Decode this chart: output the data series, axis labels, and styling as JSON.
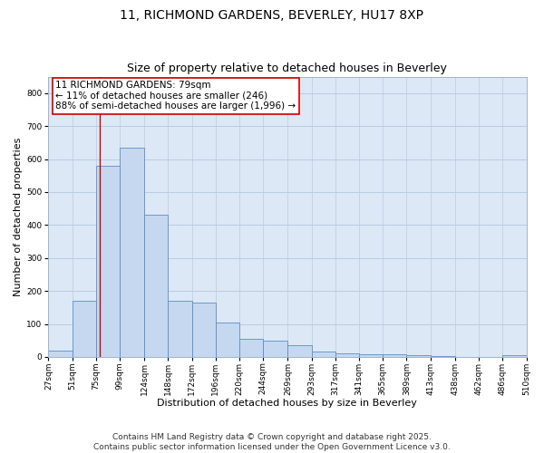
{
  "title_line1": "11, RICHMOND GARDENS, BEVERLEY, HU17 8XP",
  "title_line2": "Size of property relative to detached houses in Beverley",
  "xlabel": "Distribution of detached houses by size in Beverley",
  "ylabel": "Number of detached properties",
  "bar_color": "#c5d8f0",
  "bar_edge_color": "#5b8ec4",
  "background_color": "#ffffff",
  "plot_bg_color": "#dce8f5",
  "grid_color": "#b8cce4",
  "vline_color": "#cc0000",
  "vline_x": 79,
  "annotation_text": "11 RICHMOND GARDENS: 79sqm\n← 11% of detached houses are smaller (246)\n88% of semi-detached houses are larger (1,996) →",
  "annotation_box_color": "#ffffff",
  "annotation_box_edge_color": "#cc0000",
  "bin_edges": [
    27,
    51,
    75,
    99,
    124,
    148,
    172,
    196,
    220,
    244,
    269,
    293,
    317,
    341,
    365,
    389,
    413,
    438,
    462,
    486,
    510
  ],
  "bar_heights": [
    20,
    170,
    580,
    635,
    430,
    170,
    165,
    105,
    55,
    48,
    35,
    15,
    12,
    8,
    7,
    4,
    3,
    1,
    1,
    5
  ],
  "ylim": [
    0,
    850
  ],
  "yticks": [
    0,
    100,
    200,
    300,
    400,
    500,
    600,
    700,
    800
  ],
  "xtick_labels": [
    "27sqm",
    "51sqm",
    "75sqm",
    "99sqm",
    "124sqm",
    "148sqm",
    "172sqm",
    "196sqm",
    "220sqm",
    "244sqm",
    "269sqm",
    "293sqm",
    "317sqm",
    "341sqm",
    "365sqm",
    "389sqm",
    "413sqm",
    "438sqm",
    "462sqm",
    "486sqm",
    "510sqm"
  ],
  "footer_text": "Contains HM Land Registry data © Crown copyright and database right 2025.\nContains public sector information licensed under the Open Government Licence v3.0.",
  "title_fontsize": 10,
  "subtitle_fontsize": 9,
  "axis_label_fontsize": 8,
  "tick_fontsize": 6.5,
  "annotation_fontsize": 7.5,
  "footer_fontsize": 6.5
}
